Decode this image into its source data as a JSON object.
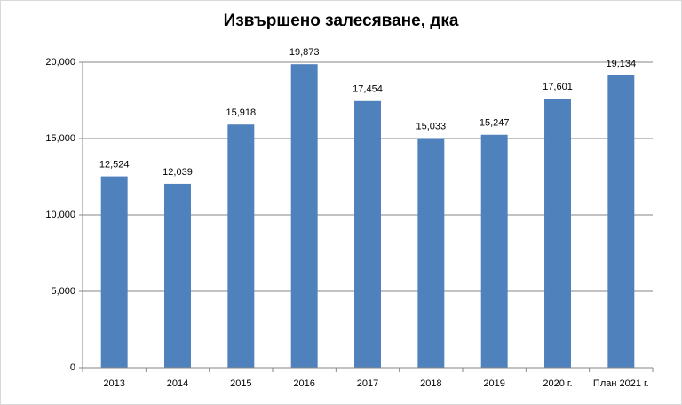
{
  "chart_data": {
    "type": "bar",
    "title": "Извършено залесяване, дка",
    "categories": [
      "2013",
      "2014",
      "2015",
      "2016",
      "2017",
      "2018",
      "2019",
      "2020 г.",
      "План 2021 г."
    ],
    "values": [
      12524,
      12039,
      15918,
      19873,
      17454,
      15033,
      15247,
      17601,
      19134
    ],
    "value_labels": [
      "12,524",
      "12,039",
      "15,918",
      "19,873",
      "17,454",
      "15,033",
      "15,247",
      "17,601",
      "19,134"
    ],
    "color": "#4f81bd",
    "ylim": [
      0,
      20000
    ],
    "yticks": [
      0,
      {
        "value": 5000,
        "label": "5,000"
      },
      {
        "value": 10000,
        "label": "10,000"
      },
      {
        "value": 15000,
        "label": "15,000"
      },
      {
        "value": 20000,
        "label": "20,000"
      }
    ],
    "grid": true
  }
}
